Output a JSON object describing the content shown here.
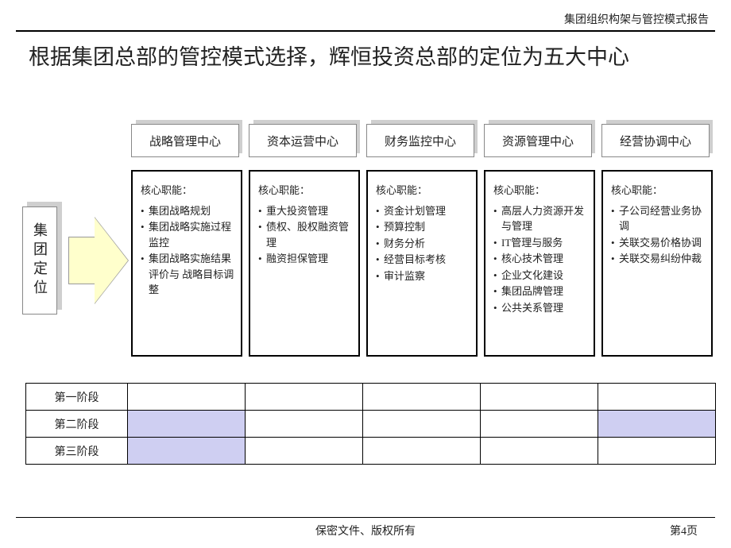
{
  "header": {
    "doc_title": "集团组织构架与管控模式报告"
  },
  "title": "根据集团总部的管控模式选择，辉恒投资总部的定位为五大中心",
  "side_label": "集团定位",
  "centers": [
    {
      "name": "战略管理中心",
      "heading": "核心职能：",
      "items": [
        "集团战略规划",
        "集团战略实施过程监控",
        "集团战略实施结果评价与 战略目标调整"
      ]
    },
    {
      "name": "资本运营中心",
      "heading": "核心职能：",
      "items": [
        "重大投资管理",
        "债权、股权融资管理",
        "融资担保管理"
      ]
    },
    {
      "name": "财务监控中心",
      "heading": "核心职能：",
      "items": [
        "资金计划管理",
        "预算控制",
        "财务分析",
        "经营目标考核",
        "审计监察"
      ]
    },
    {
      "name": "资源管理中心",
      "heading": "核心职能：",
      "items": [
        "高层人力资源开发与管理",
        "IT管理与服务",
        "核心技术管理",
        "企业文化建设",
        "集团品牌管理",
        "公共关系管理"
      ]
    },
    {
      "name": "经营协调中心",
      "heading": "核心职能：",
      "items": [
        "子公司经营业务协调",
        "关联交易价格协调",
        "关联交易纠纷仲裁"
      ]
    }
  ],
  "phases": {
    "rows": [
      "第一阶段",
      "第二阶段",
      "第三阶段"
    ],
    "shaded_cells": [
      [
        1,
        0
      ],
      [
        1,
        4
      ],
      [
        2,
        0
      ]
    ],
    "shaded_color": "#cfcff2",
    "columns": 5
  },
  "footer": {
    "center": "保密文件、版权所有",
    "page": "第4页"
  },
  "colors": {
    "tab_shadow": "#cfcfcf",
    "arrow_fill": "#ffffcc",
    "border": "#000000",
    "text": "#222222"
  }
}
